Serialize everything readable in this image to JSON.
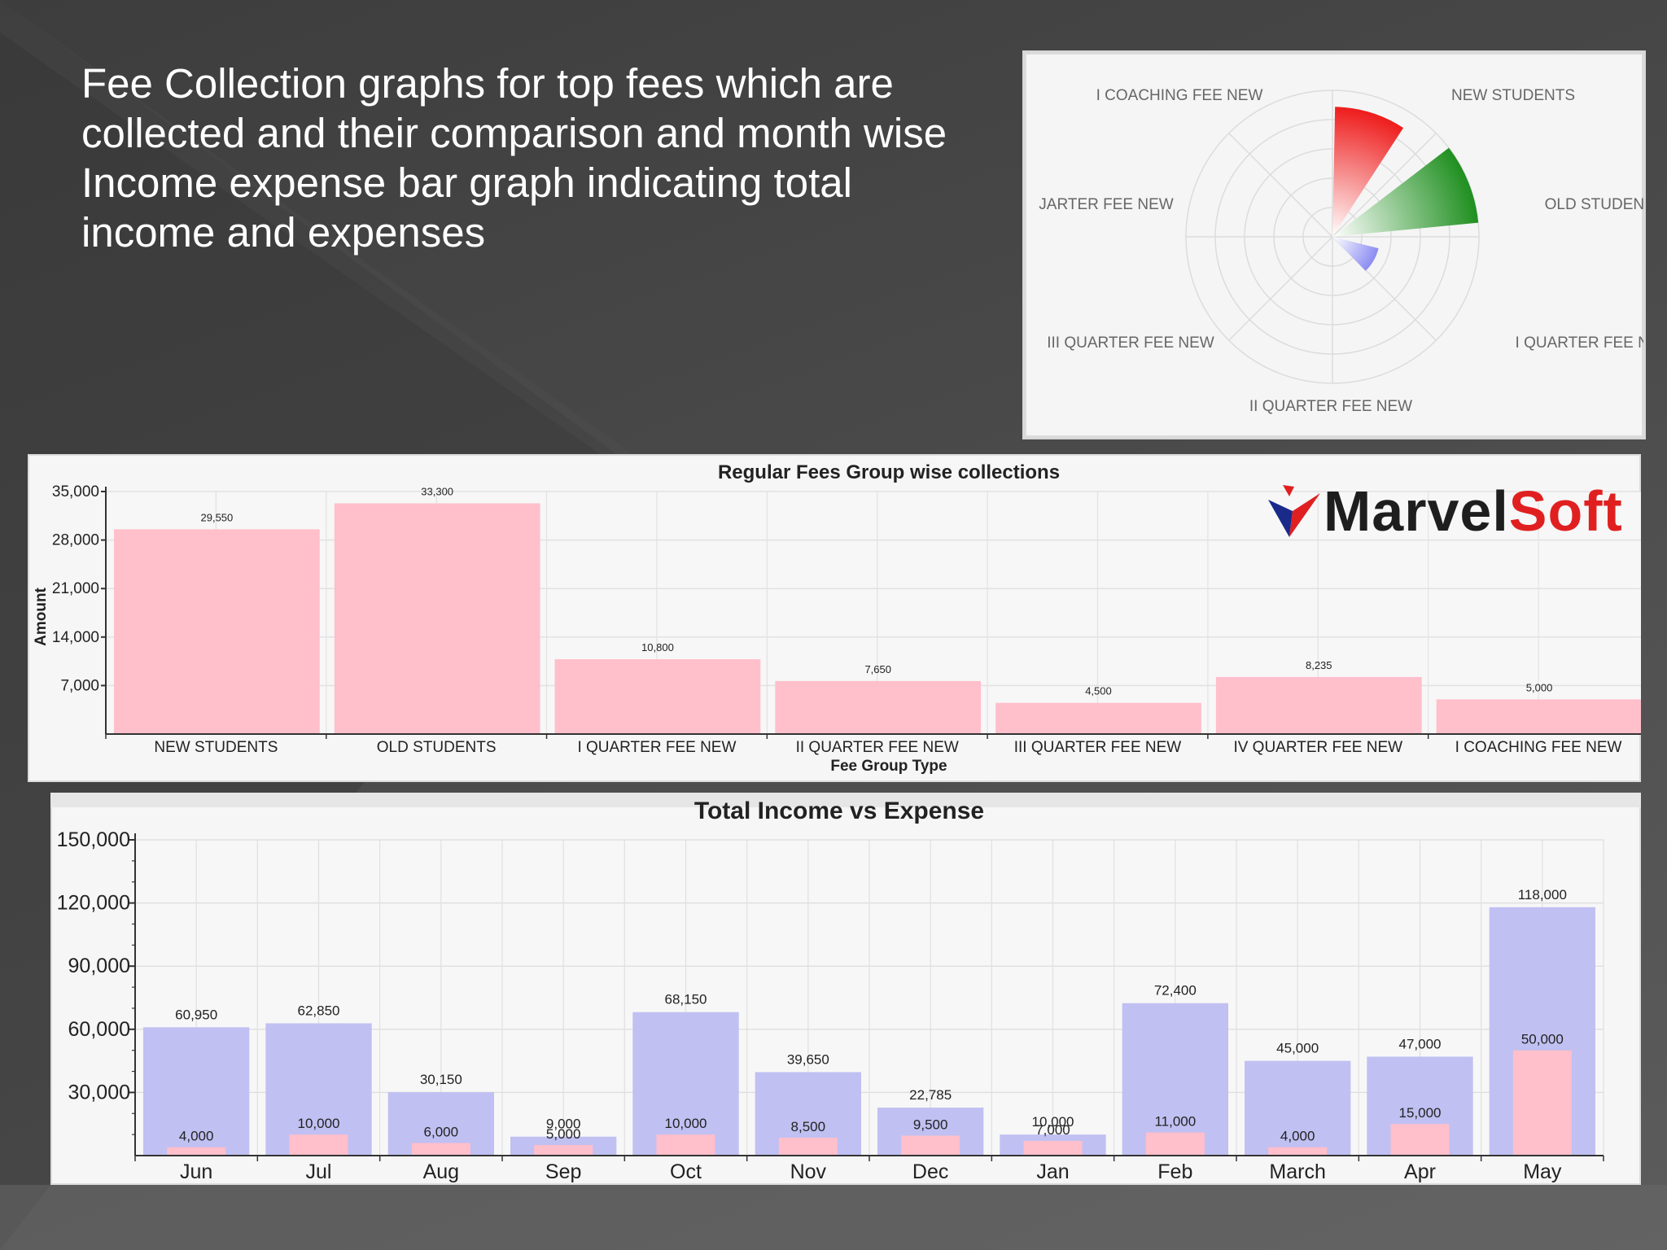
{
  "slide": {
    "title": "Fee Collection  graphs for top fees which are collected and their comparison and month wise Income expense bar graph indicating total income and expenses"
  },
  "logo": {
    "part1": "Marvel",
    "part2": "Soft"
  },
  "colors": {
    "fee_bar": "#ffbfcb",
    "income_bar": "#c0c0f2",
    "expense_bar": "#ffbfcb",
    "polar_red": "#ee1c1c",
    "polar_green": "#1f8f1f",
    "polar_blue": "#8c8cf2"
  },
  "chart_data": [
    {
      "type": "polar",
      "categories": [
        "NEW STUDENTS",
        "OLD STUDENTS",
        "I QUARTER FEE NEW",
        "II QUARTER FEE NEW",
        "III QUARTER FEE NEW",
        "JARTER FEE NEW",
        "I COACHING FEE NEW"
      ],
      "values": [
        29550,
        33300,
        10800,
        0,
        0,
        0,
        0
      ],
      "colors": [
        "#ee1c1c",
        "#1f8f1f",
        "#8c8cf2"
      ]
    },
    {
      "type": "bar",
      "title": "Regular Fees Group wise collections",
      "xlabel": "Fee Group Type",
      "ylabel": "Amount",
      "categories": [
        "NEW STUDENTS",
        "OLD STUDENTS",
        "I QUARTER FEE NEW",
        "II QUARTER FEE NEW",
        "III QUARTER FEE NEW",
        "IV QUARTER FEE NEW",
        "I COACHING FEE NEW"
      ],
      "values": [
        29550,
        33300,
        10800,
        7650,
        4500,
        8235,
        5000
      ],
      "value_labels": [
        "29,550",
        "33,300",
        "10,800",
        "7,650",
        "4,500",
        "8,235",
        "5,000"
      ],
      "ylim": [
        0,
        35000
      ],
      "yticks": [
        7000,
        14000,
        21000,
        28000,
        35000
      ],
      "ytick_labels": [
        "7,000",
        "14,000",
        "21,000",
        "28,000",
        "35,000"
      ]
    },
    {
      "type": "bar",
      "title": "Total Income vs Expense",
      "categories": [
        "Jun",
        "Jul",
        "Aug",
        "Sep",
        "Oct",
        "Nov",
        "Dec",
        "Jan",
        "Feb",
        "March",
        "Apr",
        "May"
      ],
      "series": [
        {
          "values": [
            60950,
            62850,
            30150,
            9000,
            68150,
            39650,
            22785,
            10000,
            72400,
            45000,
            47000,
            118000
          ],
          "value_labels": [
            "60,950",
            "62,850",
            "30,150",
            "9,000",
            "68,150",
            "39,650",
            "22,785",
            "10,000",
            "72,400",
            "45,000",
            "47,000",
            "118,000"
          ]
        },
        {
          "values": [
            4000,
            10000,
            6000,
            5000,
            10000,
            8500,
            9500,
            7000,
            11000,
            4000,
            15000,
            50000
          ],
          "value_labels": [
            "4,000",
            "10,000",
            "6,000",
            "5,000",
            "10,000",
            "8,500",
            "9,500",
            "7,000",
            "11,000",
            "4,000",
            "15,000",
            "50,000"
          ]
        }
      ],
      "ylim": [
        0,
        150000
      ],
      "yticks": [
        30000,
        60000,
        90000,
        120000,
        150000
      ],
      "ytick_labels": [
        "30,000",
        "60,000",
        "90,000",
        "120,000",
        "150,000"
      ]
    }
  ]
}
